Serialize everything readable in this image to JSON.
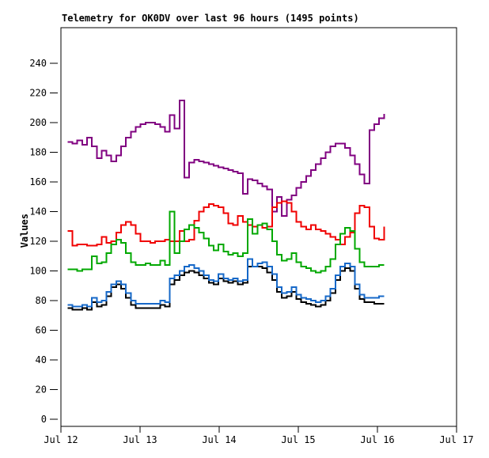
{
  "chart": {
    "title": "Telemetry for OK0DV over last 96 hours (1495 points)",
    "y_axis_label": "Values"
  },
  "chart_data": {
    "type": "line",
    "title": "Telemetry for OK0DV over last 96 hours (1495 points)",
    "xlabel": "",
    "ylabel": "Values",
    "grid": false,
    "legend": "none",
    "ylim": [
      0,
      264
    ],
    "y_ticks": [
      0,
      20,
      40,
      60,
      80,
      100,
      120,
      140,
      160,
      180,
      200,
      220,
      240
    ],
    "x_ticks": [
      {
        "hour": 0,
        "label": "Jul 12"
      },
      {
        "hour": 24,
        "label": "Jul 13"
      },
      {
        "hour": 48,
        "label": "Jul 14"
      },
      {
        "hour": 72,
        "label": "Jul 15"
      },
      {
        "hour": 96,
        "label": "Jul 16"
      },
      {
        "hour": 120,
        "label": "Jul 17"
      }
    ],
    "x_axis_span_hours": [
      0,
      120
    ],
    "data_span_hours": [
      2,
      98
    ],
    "series": [
      {
        "name": "purple",
        "color": "#800080",
        "values": [
          187,
          186,
          188,
          185,
          190,
          184,
          176,
          181,
          178,
          174,
          178,
          184,
          190,
          194,
          197,
          199,
          200,
          200,
          199,
          197,
          194,
          205,
          196,
          215,
          163,
          173,
          175,
          174,
          173,
          172,
          171,
          170,
          169,
          168,
          167,
          166,
          152,
          162,
          161,
          159,
          157,
          155,
          140,
          150,
          137,
          148,
          151,
          156,
          160,
          164,
          168,
          172,
          176,
          180,
          184,
          186,
          186,
          183,
          178,
          172,
          165,
          159,
          195,
          199,
          203,
          206
        ]
      },
      {
        "name": "red",
        "color": "#f00000",
        "values": [
          127,
          117,
          118,
          118,
          117,
          117,
          118,
          123,
          119,
          120,
          126,
          131,
          133,
          131,
          125,
          120,
          120,
          119,
          120,
          120,
          121,
          120,
          120,
          127,
          120,
          121,
          134,
          140,
          143,
          145,
          144,
          143,
          139,
          132,
          131,
          137,
          133,
          131,
          130,
          131,
          129,
          130,
          143,
          146,
          147,
          146,
          140,
          133,
          130,
          128,
          131,
          128,
          127,
          125,
          123,
          121,
          118,
          123,
          126,
          139,
          144,
          143,
          130,
          122,
          121,
          130
        ]
      },
      {
        "name": "green",
        "color": "#00a800",
        "values": [
          101,
          101,
          100,
          101,
          101,
          110,
          105,
          106,
          112,
          118,
          121,
          119,
          112,
          106,
          104,
          104,
          105,
          104,
          104,
          107,
          104,
          140,
          112,
          120,
          128,
          131,
          129,
          126,
          122,
          117,
          114,
          118,
          113,
          111,
          112,
          110,
          112,
          135,
          125,
          131,
          132,
          128,
          120,
          111,
          107,
          108,
          112,
          106,
          103,
          102,
          100,
          99,
          100,
          103,
          108,
          118,
          125,
          129,
          127,
          115,
          106,
          103,
          103,
          103,
          104,
          104
        ]
      },
      {
        "name": "black",
        "color": "#000000",
        "values": [
          75,
          74,
          74,
          75,
          74,
          79,
          76,
          77,
          83,
          89,
          91,
          88,
          82,
          77,
          75,
          75,
          75,
          75,
          75,
          77,
          76,
          91,
          94,
          97,
          99,
          100,
          99,
          97,
          95,
          92,
          91,
          95,
          93,
          92,
          93,
          91,
          92,
          103,
          103,
          103,
          102,
          99,
          94,
          86,
          82,
          83,
          86,
          81,
          79,
          78,
          77,
          76,
          77,
          80,
          85,
          94,
          100,
          102,
          100,
          88,
          81,
          79,
          79,
          78,
          78,
          78
        ]
      },
      {
        "name": "blue",
        "color": "#1668c8",
        "values": [
          77,
          76,
          76,
          77,
          76,
          82,
          79,
          80,
          86,
          91,
          93,
          91,
          85,
          80,
          78,
          78,
          78,
          78,
          78,
          80,
          79,
          95,
          97,
          100,
          103,
          104,
          102,
          100,
          97,
          94,
          93,
          98,
          95,
          94,
          95,
          93,
          94,
          108,
          103,
          105,
          106,
          103,
          98,
          89,
          85,
          86,
          89,
          84,
          82,
          81,
          80,
          79,
          80,
          83,
          88,
          97,
          103,
          105,
          103,
          91,
          84,
          82,
          82,
          82,
          83,
          83
        ]
      }
    ]
  }
}
